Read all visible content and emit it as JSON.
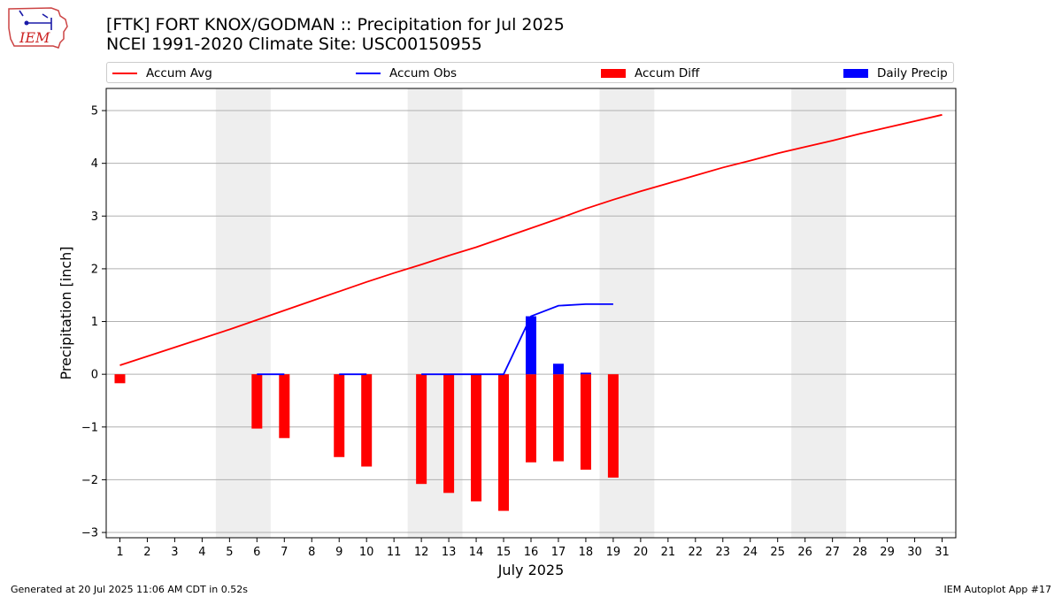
{
  "header": {
    "title_line1": "[FTK] FORT KNOX/GODMAN :: Precipitation for Jul 2025",
    "title_line2": "NCEI 1991-2020 Climate Site: USC00150955",
    "logo_text": "IEM"
  },
  "legend": {
    "items": [
      {
        "label": "Accum Avg",
        "kind": "line",
        "color": "#ff0000"
      },
      {
        "label": "Accum Obs",
        "kind": "line",
        "color": "#0000ff"
      },
      {
        "label": "Accum Diff",
        "kind": "patch",
        "color": "#ff0000"
      },
      {
        "label": "Daily Precip",
        "kind": "patch",
        "color": "#0000ff"
      }
    ]
  },
  "footer": {
    "generated": "Generated at 20 Jul 2025 11:06 AM CDT in 0.52s",
    "app": "IEM Autoplot App #17"
  },
  "chart_data": {
    "type": "bar",
    "title": "[FTK] FORT KNOX/GODMAN :: Precipitation for Jul 2025",
    "subtitle": "NCEI 1991-2020 Climate Site: USC00150955",
    "xlabel": "July 2025",
    "ylabel": "Precipitation [inch]",
    "ylim": [
      -3.1,
      5.42
    ],
    "xlim": [
      0.5,
      31.5
    ],
    "yticks": [
      5,
      4,
      3,
      2,
      1,
      0,
      -1,
      -2,
      -3
    ],
    "ytick_labels": [
      "5",
      "4",
      "3",
      "2",
      "1",
      "0",
      "−1",
      "−2",
      "−3"
    ],
    "categories": [
      "1",
      "2",
      "3",
      "4",
      "5",
      "6",
      "7",
      "8",
      "9",
      "10",
      "11",
      "12",
      "13",
      "14",
      "15",
      "16",
      "17",
      "18",
      "19",
      "20",
      "21",
      "22",
      "23",
      "24",
      "25",
      "26",
      "27",
      "28",
      "29",
      "30",
      "31"
    ],
    "grid": "y",
    "weekend_shading": [
      [
        4.5,
        6.5
      ],
      [
        11.5,
        13.5
      ],
      [
        18.5,
        20.5
      ],
      [
        25.5,
        27.5
      ]
    ],
    "colors": {
      "avg": "#ff0000",
      "obs": "#0000ff",
      "diff": "#ff0000",
      "daily": "#0000ff",
      "shade": "#eeeeee",
      "grid": "#b0b0b0"
    },
    "accum_avg": {
      "name": "Accum Avg",
      "days": [
        1,
        2,
        3,
        4,
        5,
        6,
        7,
        8,
        9,
        10,
        11,
        12,
        13,
        14,
        15,
        16,
        17,
        18,
        19,
        20,
        21,
        22,
        23,
        24,
        25,
        26,
        27,
        28,
        29,
        30,
        31
      ],
      "values": [
        0.17,
        0.34,
        0.51,
        0.68,
        0.85,
        1.03,
        1.21,
        1.39,
        1.57,
        1.75,
        1.92,
        2.08,
        2.25,
        2.41,
        2.59,
        2.77,
        2.95,
        3.14,
        3.31,
        3.47,
        3.62,
        3.77,
        3.92,
        4.05,
        4.19,
        4.31,
        4.43,
        4.56,
        4.68,
        4.8,
        4.92
      ]
    },
    "accum_obs": {
      "name": "Accum Obs",
      "segments": [
        {
          "x": [
            6,
            7
          ],
          "values": [
            0.0,
            0.0
          ]
        },
        {
          "x": [
            9,
            10
          ],
          "values": [
            0.0,
            0.0
          ]
        },
        {
          "x": [
            12,
            13,
            14,
            15,
            16,
            17,
            18,
            19
          ],
          "values": [
            0.0,
            0.0,
            0.0,
            0.0,
            1.1,
            1.3,
            1.33,
            1.33
          ]
        }
      ]
    },
    "accum_diff": {
      "name": "Accum Diff",
      "days": [
        1,
        6,
        7,
        9,
        10,
        12,
        13,
        14,
        15,
        16,
        17,
        18,
        19
      ],
      "values": [
        -0.17,
        -1.03,
        -1.21,
        -1.57,
        -1.75,
        -2.08,
        -2.25,
        -2.41,
        -2.59,
        -1.67,
        -1.65,
        -1.81,
        -1.96
      ]
    },
    "daily_precip": {
      "name": "Daily Precip",
      "days": [
        16,
        17,
        18
      ],
      "values": [
        1.1,
        0.2,
        0.03
      ]
    }
  }
}
